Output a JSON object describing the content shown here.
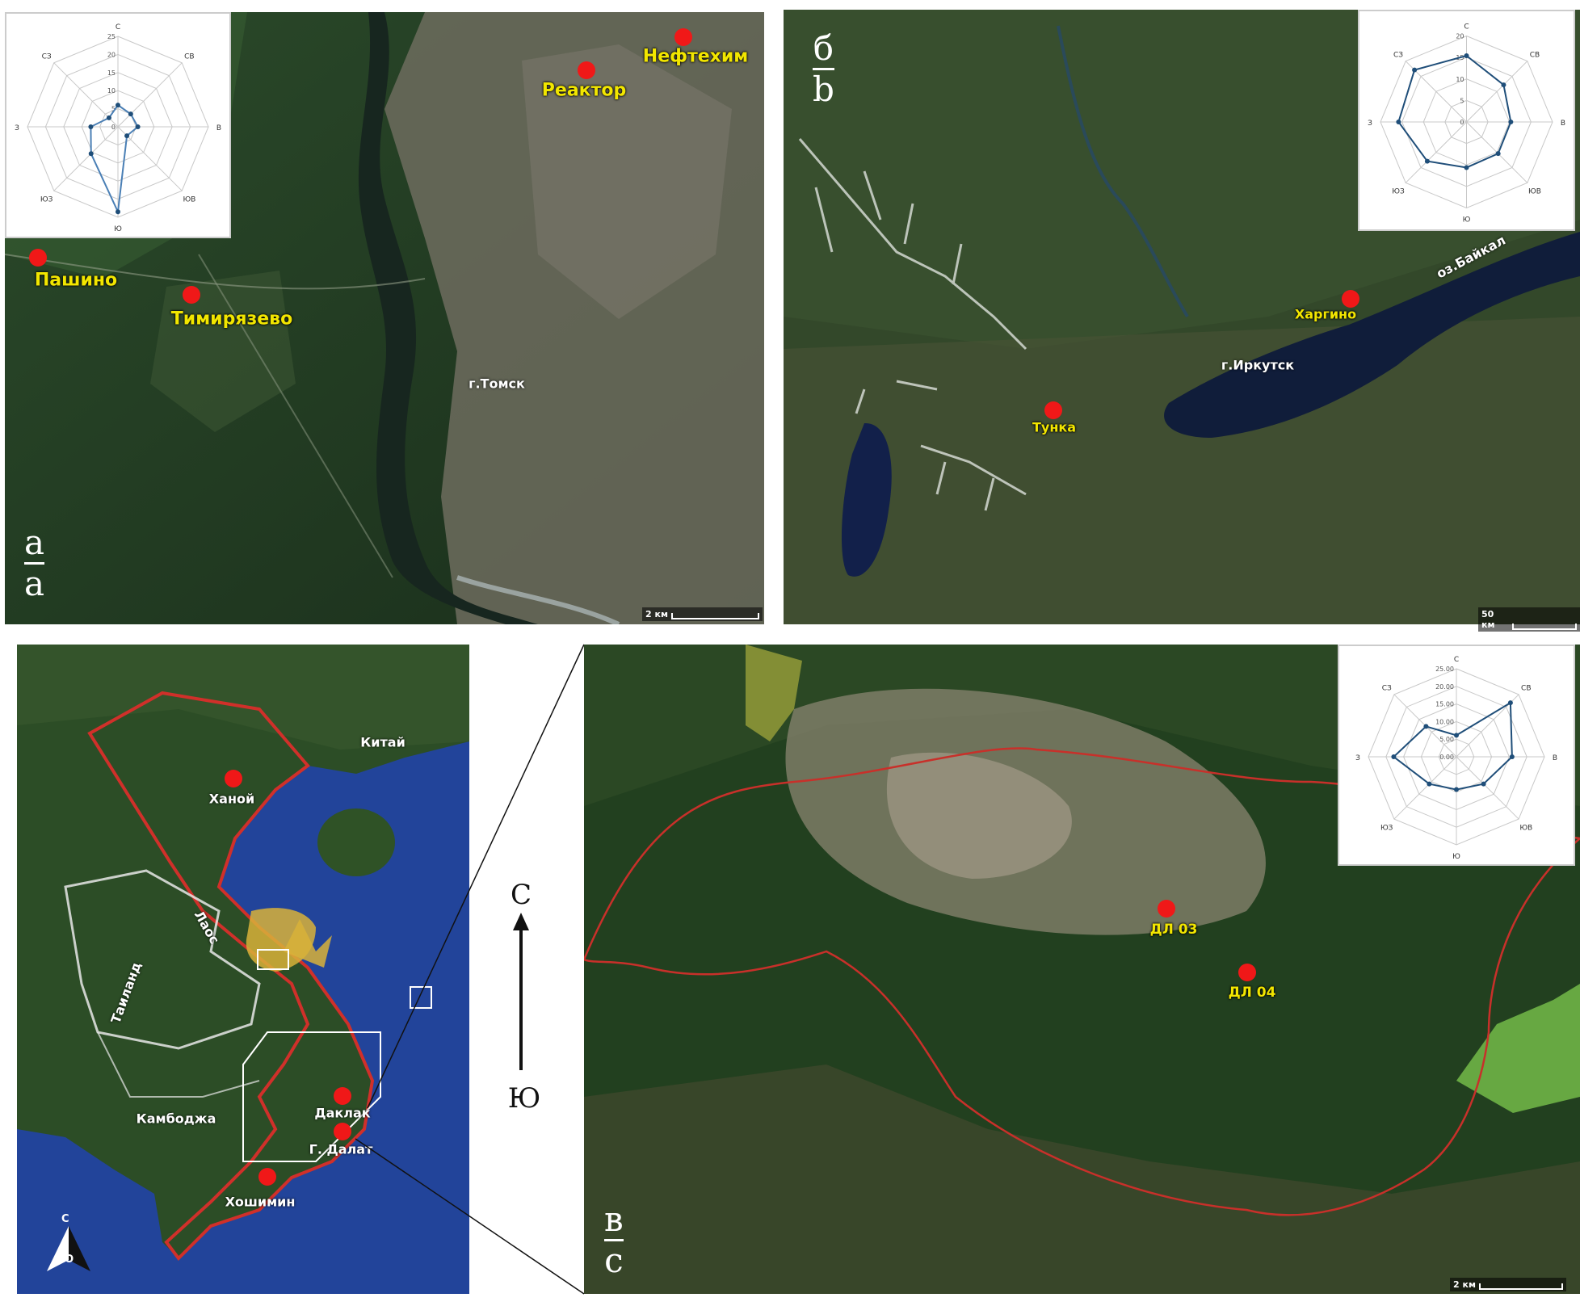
{
  "panel_a": {
    "label_top": "а",
    "label_bottom": "a",
    "city": "г.Томск",
    "scale": "2 км",
    "sites": [
      "Нефтехим",
      "Реактор",
      "Пашино",
      "Тимирязево"
    ]
  },
  "panel_b": {
    "label_top": "б",
    "label_bottom": "b",
    "city": "г.Иркутск",
    "lake": "оз.Байкал",
    "scale": "50 км",
    "sites": [
      "Харгино",
      "Тунка"
    ]
  },
  "panel_c_overview": {
    "countries": [
      "Китай",
      "Лаос",
      "Таиланд",
      "Камбоджа"
    ],
    "sites": [
      "Ханой",
      "Даклак",
      "Г. Далат",
      "Хошимин"
    ],
    "compass": {
      "north": "С",
      "south": "Ю"
    }
  },
  "north_arrow": {
    "north": "С",
    "south": "Ю"
  },
  "panel_c_detail": {
    "label_top": "в",
    "label_bottom": "c",
    "scale": "2 км",
    "sites": [
      "ДЛ 03",
      "ДЛ 04"
    ]
  },
  "colors": {
    "site_marker": "#f01818",
    "site_label": "#f2e600",
    "border": "#d0302a",
    "series": "#1f4e79"
  },
  "chart_data": [
    {
      "type": "radar",
      "categories": [
        "С",
        "СВ",
        "В",
        "ЮВ",
        "Ю",
        "ЮЗ",
        "З",
        "СЗ"
      ],
      "values": [
        6,
        5,
        5.5,
        3.5,
        23.5,
        10.5,
        7.5,
        3.5
      ],
      "ticks": [
        "0",
        "5",
        "10",
        "15",
        "20",
        "25"
      ],
      "rmax": 25
    },
    {
      "type": "radar",
      "categories": [
        "С",
        "СВ",
        "В",
        "ЮВ",
        "Ю",
        "ЮЗ",
        "З",
        "СЗ"
      ],
      "values": [
        15.4,
        12.2,
        10.3,
        10.4,
        10.6,
        12.9,
        15.8,
        17.1
      ],
      "ticks": [
        "0",
        "5",
        "10",
        "15",
        "20"
      ],
      "rmax": 20
    },
    {
      "type": "radar",
      "categories": [
        "С",
        "СВ",
        "В",
        "ЮВ",
        "Ю",
        "ЮЗ",
        "З",
        "СЗ"
      ],
      "values": [
        6.1,
        21.7,
        15.8,
        10.9,
        9.3,
        10.9,
        17.8,
        12.2
      ],
      "ticks": [
        "0.00",
        "5.00",
        "10.00",
        "15.00",
        "20.00",
        "25.00"
      ],
      "rmax": 25
    }
  ]
}
